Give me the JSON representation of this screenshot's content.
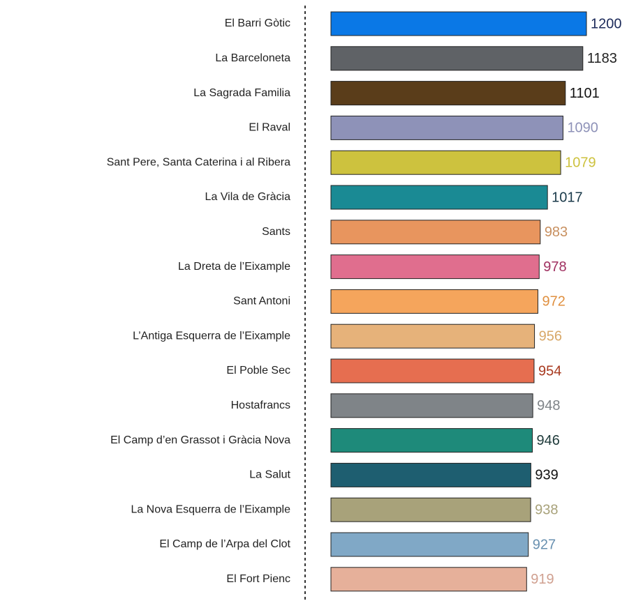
{
  "chart_data": {
    "type": "hbar",
    "categories": [
      "El Barri Gòtic",
      "La Barceloneta",
      "La Sagrada Familia",
      "El Raval",
      "Sant Pere, Santa Caterina i al Ribera",
      "La Vila de Gràcia",
      "Sants",
      "La Dreta de l’Eixample",
      "Sant Antoni",
      "L’Antiga Esquerra de l’Eixample",
      "El Poble Sec",
      "Hostafrancs",
      "El Camp d’en Grassot i Gràcia Nova",
      "La Salut",
      "La Nova Esquerra de l’Eixample",
      "El Camp de l’Arpa del Clot",
      "El Fort Pienc"
    ],
    "values": [
      1200,
      1183,
      1101,
      1090,
      1079,
      1017,
      983,
      978,
      972,
      956,
      954,
      948,
      946,
      939,
      938,
      927,
      919
    ],
    "colors": [
      "#0a78e6",
      "#5f6266",
      "#5a3d1a",
      "#8e92b8",
      "#cdc23e",
      "#1a8a94",
      "#e8955e",
      "#e06e8e",
      "#f5a55c",
      "#e6b27a",
      "#e66e50",
      "#7f8488",
      "#1e8a7a",
      "#1e5e70",
      "#a8a27a",
      "#80a8c6",
      "#e6b09a"
    ],
    "label_colors": [
      "#1c2a5a",
      "#222222",
      "#111111",
      "#8e92b8",
      "#cdc23e",
      "#1a3a4a",
      "#c89060",
      "#a03060",
      "#e09040",
      "#d8a868",
      "#a83a20",
      "#7f8488",
      "#1e3a3a",
      "#111111",
      "#a8a27a",
      "#6890b0",
      "#d0a090"
    ],
    "xlim": [
      0,
      1200
    ]
  }
}
